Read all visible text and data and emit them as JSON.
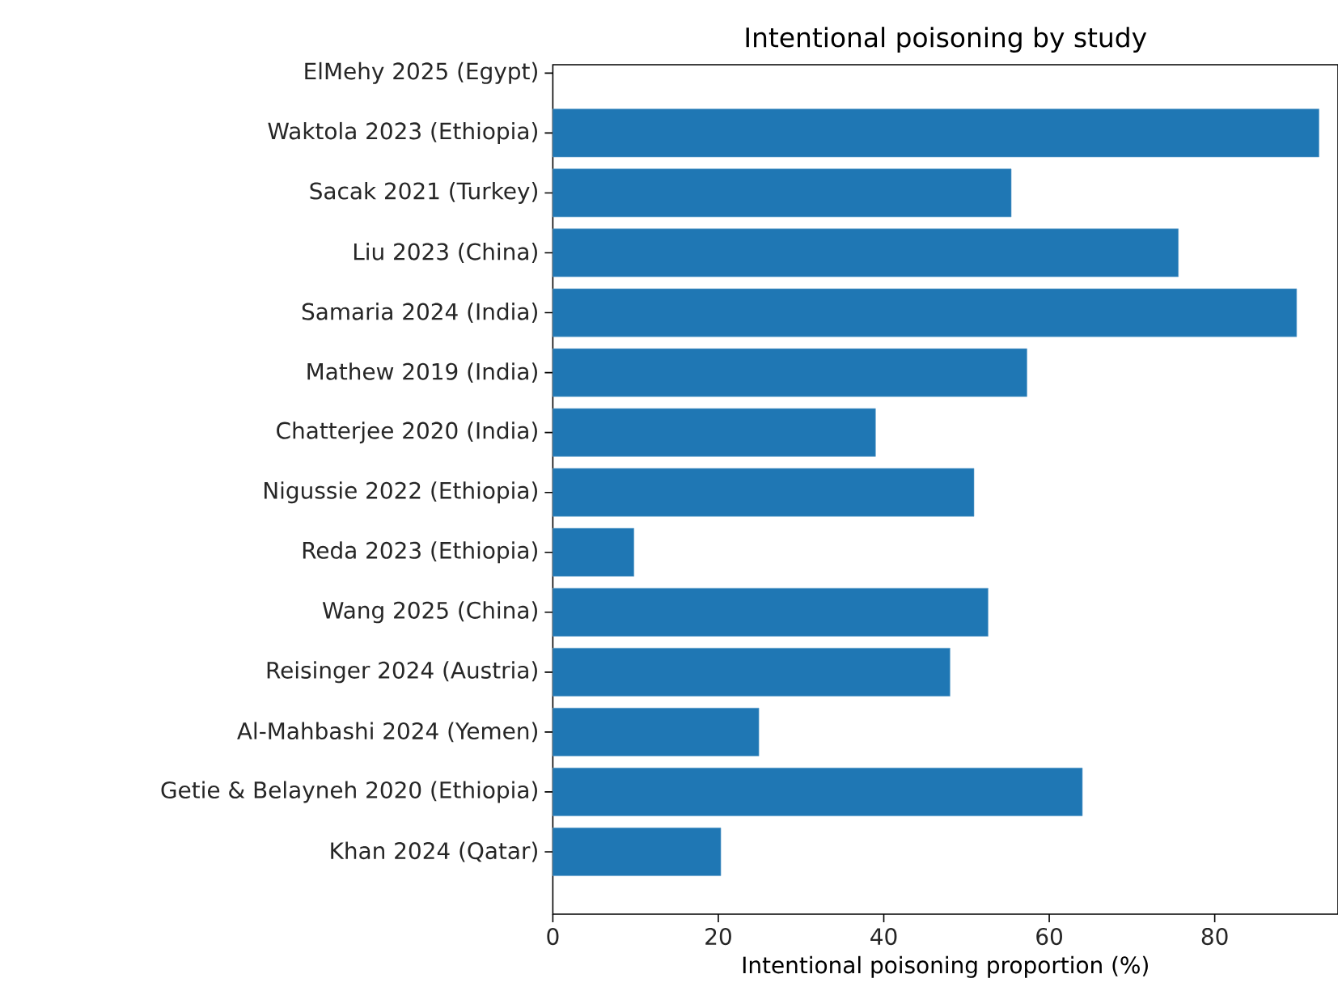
{
  "chart_data": {
    "type": "bar",
    "orientation": "horizontal",
    "title": "Intentional poisoning by study",
    "xlabel": "Intentional poisoning proportion (%)",
    "categories": [
      "ElMehy 2025 (Egypt)",
      "Waktola 2023 (Ethiopia)",
      "Sacak 2021 (Turkey)",
      "Liu 2023 (China)",
      "Samaria 2024 (India)",
      "Mathew 2019 (India)",
      "Chatterjee 2020 (India)",
      "Nigussie 2022 (Ethiopia)",
      "Reda 2023 (Ethiopia)",
      "Wang 2025 (China)",
      "Reisinger 2024 (Austria)",
      "Al-Mahbashi 2024 (Yemen)",
      "Getie & Belayneh 2020 (Ethiopia)",
      "Khan 2024 (Qatar)"
    ],
    "values": [
      null,
      92.6,
      55.4,
      75.6,
      89.9,
      57.3,
      39.0,
      50.9,
      9.8,
      52.6,
      48.0,
      24.9,
      64.0,
      20.3
    ],
    "color": "#1f77b4",
    "xlim": [
      0,
      94.9
    ],
    "xticks": [
      0,
      20,
      40,
      60,
      80
    ]
  }
}
